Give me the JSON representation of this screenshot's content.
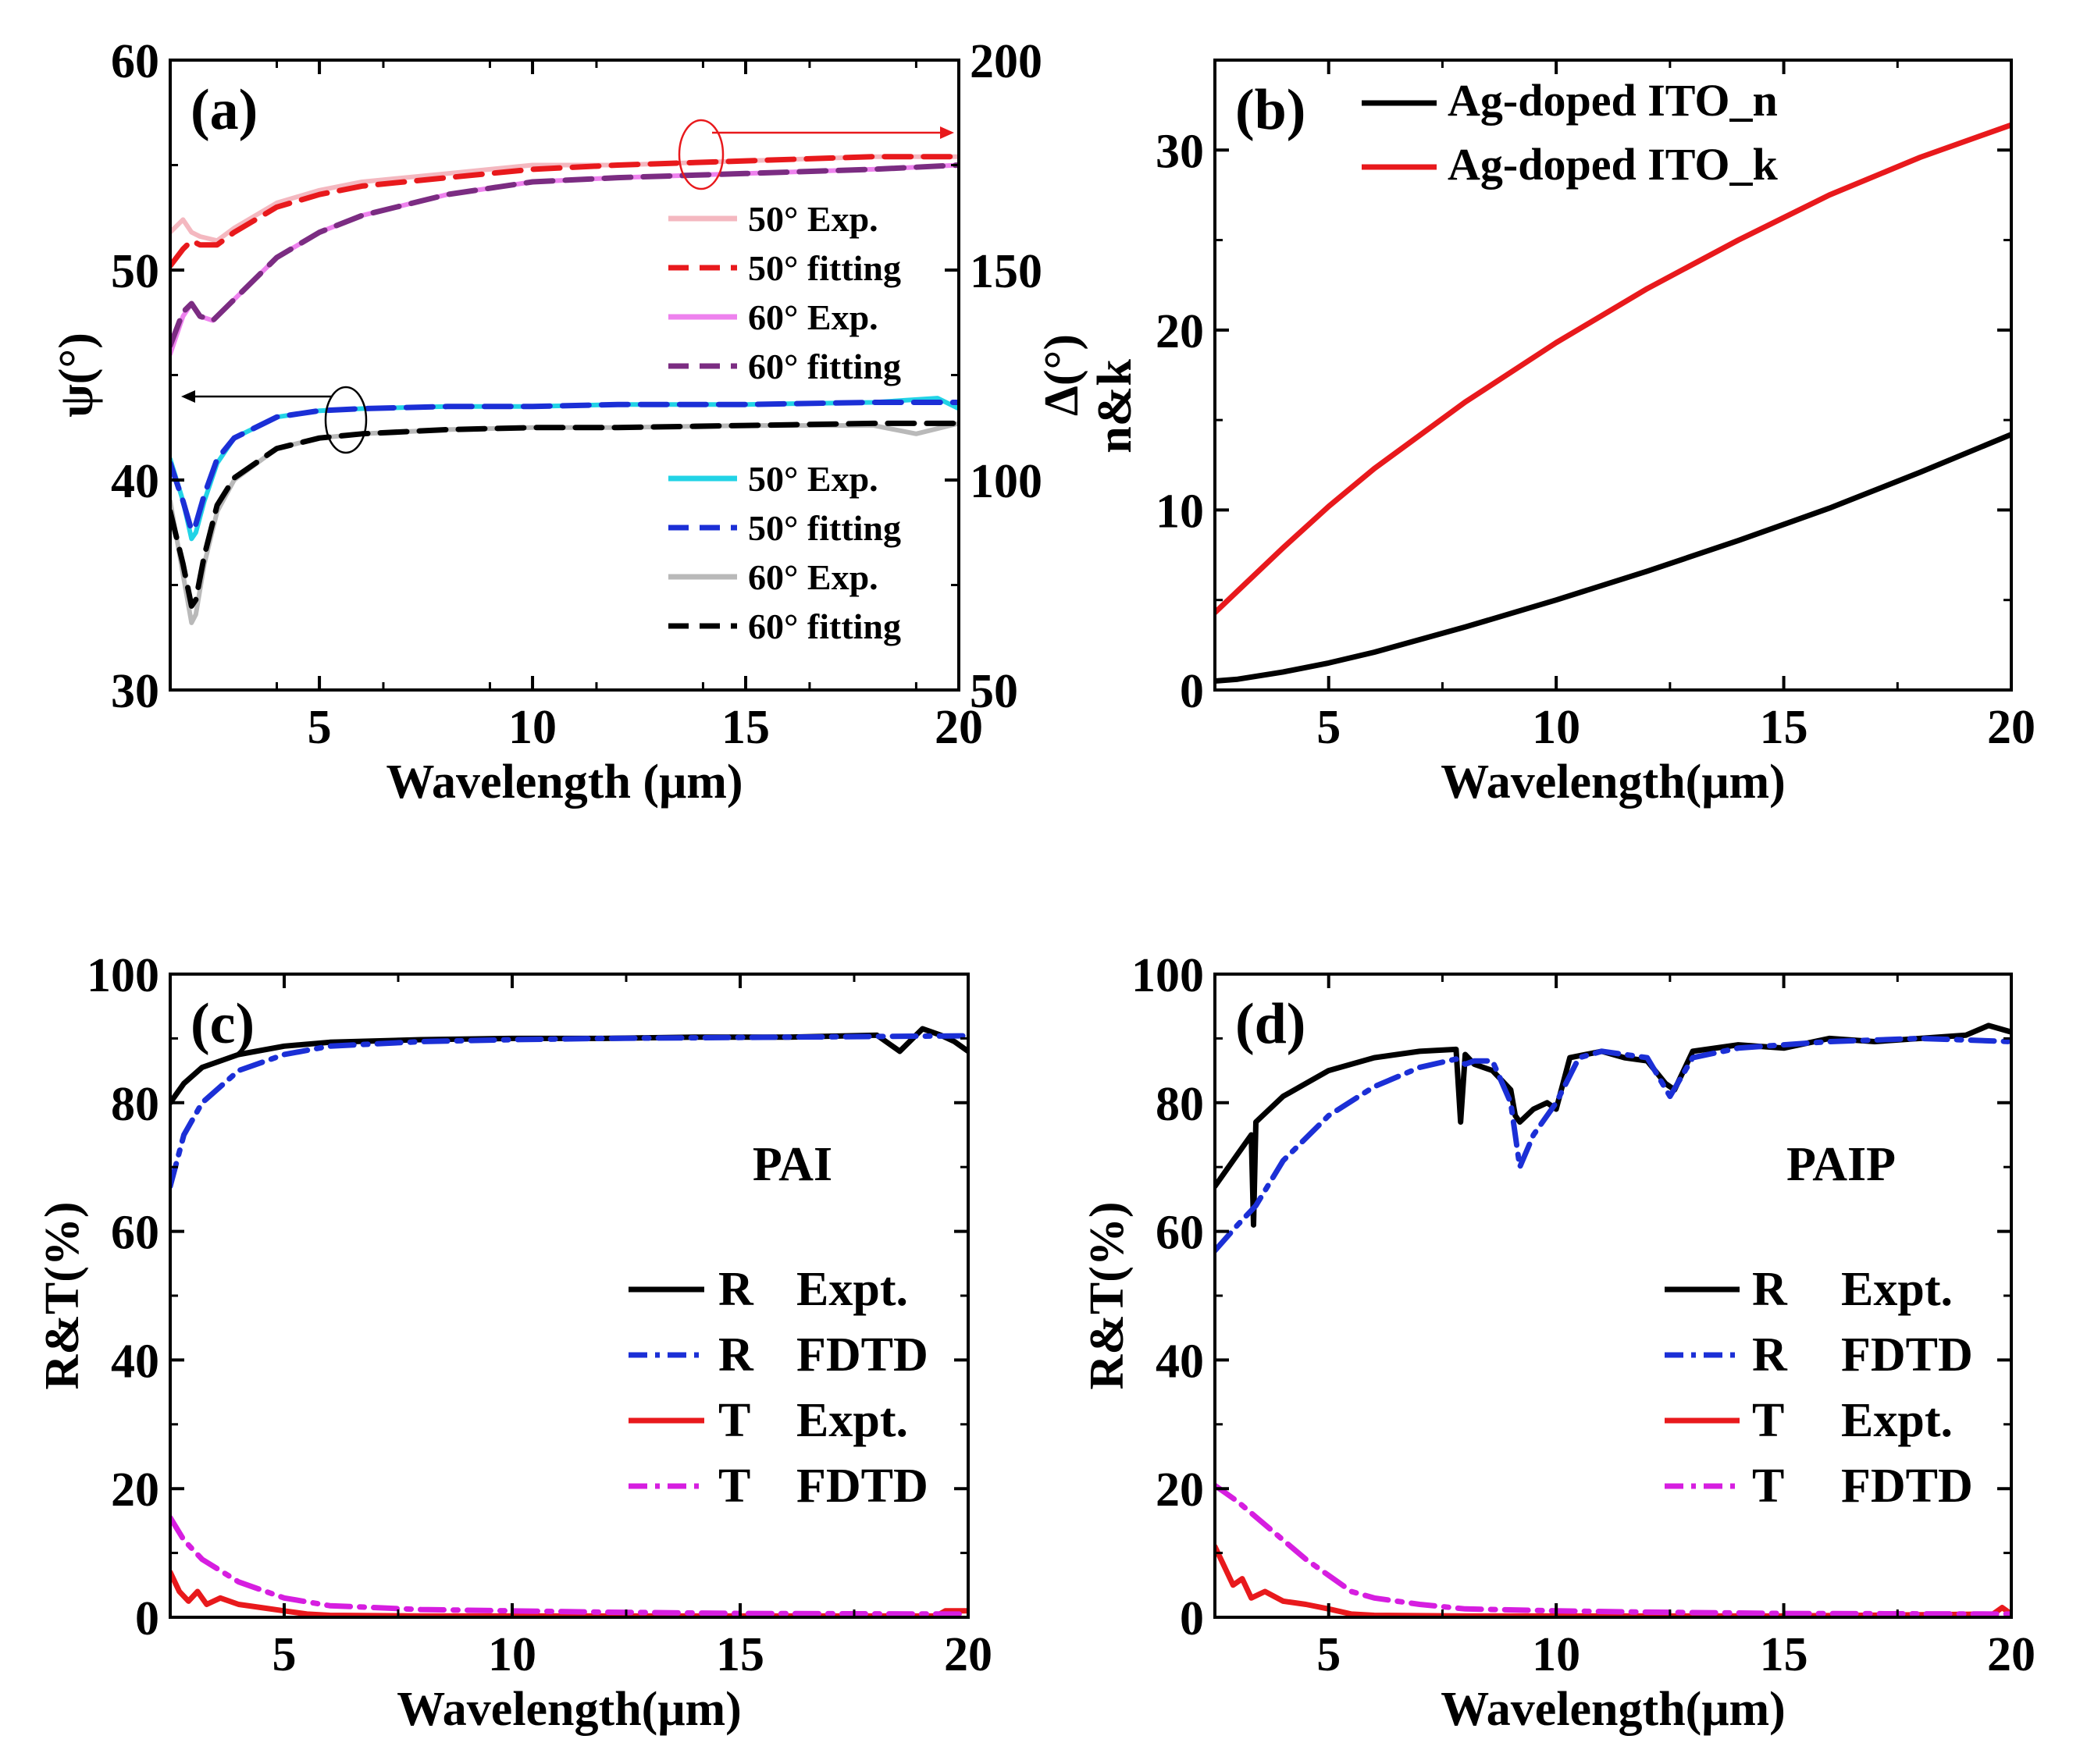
{
  "chart_data": [
    {
      "panel": "(a)",
      "type": "line",
      "xlabel": "Wavelength (μm)",
      "ylabel": "ψ(°)",
      "ylabel_right": "Δ(°)",
      "xlim": [
        1.5,
        20
      ],
      "ylim": [
        30,
        60
      ],
      "ylim_right": [
        50,
        200
      ],
      "x_ticks": [
        "5",
        "10",
        "15",
        "20"
      ],
      "y_ticks": [
        "30",
        "40",
        "50",
        "60"
      ],
      "y_ticks_right": [
        "50",
        "100",
        "150",
        "200"
      ],
      "series": [
        {
          "name": "50° Exp.",
          "axis": "right",
          "color": "#f4b8c0",
          "dash": "solid",
          "x": [
            1.5,
            1.8,
            2.0,
            2.2,
            2.6,
            3,
            4,
            5,
            6,
            8,
            10,
            12,
            15,
            18,
            20
          ],
          "y": [
            159,
            162,
            159,
            158,
            157,
            160,
            166,
            169,
            171,
            173,
            175,
            175,
            176,
            177,
            177
          ]
        },
        {
          "name": "50° fitting",
          "axis": "right",
          "color": "#e8191c",
          "dash": "dash",
          "x": [
            1.5,
            1.8,
            2.0,
            2.2,
            2.6,
            3,
            4,
            5,
            6,
            8,
            10,
            12,
            15,
            18,
            20
          ],
          "y": [
            151,
            155,
            157,
            156,
            156,
            159,
            165,
            168,
            170,
            172,
            174,
            175,
            176,
            177,
            177
          ]
        },
        {
          "name": "60° Exp.",
          "axis": "right",
          "color": "#ee82ee",
          "dash": "solid",
          "x": [
            1.5,
            1.8,
            2.0,
            2.2,
            2.5,
            3,
            4,
            5,
            6,
            8,
            10,
            12,
            15,
            18,
            20
          ],
          "y": [
            130,
            139,
            142,
            139,
            138,
            143,
            153,
            159,
            163,
            168,
            171,
            172,
            173,
            174,
            175
          ]
        },
        {
          "name": "60° fitting",
          "axis": "right",
          "color": "#7b2c82",
          "dash": "dash",
          "x": [
            1.5,
            1.8,
            2.0,
            2.2,
            2.5,
            3,
            4,
            5,
            6,
            8,
            10,
            12,
            15,
            18,
            20
          ],
          "y": [
            132,
            140,
            142,
            139,
            138,
            143,
            153,
            159,
            163,
            168,
            171,
            172,
            173,
            174,
            175
          ]
        },
        {
          "name": "50° Exp.",
          "axis": "left",
          "color": "#22d3e6",
          "dash": "solid",
          "x": [
            1.5,
            1.8,
            2.0,
            2.1,
            2.3,
            2.6,
            3,
            4,
            5,
            6,
            8,
            10,
            12,
            15,
            18,
            19.5,
            20
          ],
          "y": [
            41,
            39,
            37.2,
            37.5,
            39,
            40.8,
            42,
            43,
            43.3,
            43.4,
            43.5,
            43.5,
            43.6,
            43.6,
            43.7,
            43.9,
            43.4
          ]
        },
        {
          "name": "50° fitting",
          "axis": "left",
          "color": "#1b2fd6",
          "dash": "dash",
          "x": [
            1.5,
            1.8,
            2.0,
            2.1,
            2.3,
            2.6,
            3,
            4,
            5,
            6,
            8,
            10,
            12,
            15,
            18,
            20
          ],
          "y": [
            40.8,
            39,
            37.6,
            37.9,
            39.3,
            41,
            42,
            43,
            43.3,
            43.4,
            43.5,
            43.5,
            43.6,
            43.6,
            43.7,
            43.7
          ]
        },
        {
          "name": "60° Exp.",
          "axis": "left",
          "color": "#b9b9b9",
          "dash": "solid",
          "x": [
            1.5,
            1.8,
            2.0,
            2.1,
            2.3,
            2.6,
            3,
            4,
            5,
            6,
            8,
            10,
            12,
            15,
            18,
            19,
            20
          ],
          "y": [
            39,
            35.5,
            33.2,
            33.6,
            36,
            38.5,
            40,
            41.5,
            42,
            42.2,
            42.4,
            42.5,
            42.5,
            42.6,
            42.6,
            42.2,
            42.7
          ]
        },
        {
          "name": "60° fitting",
          "axis": "left",
          "color": "#000000",
          "dash": "dash",
          "x": [
            1.5,
            1.8,
            2.0,
            2.1,
            2.3,
            2.6,
            3,
            4,
            5,
            6,
            8,
            10,
            12,
            15,
            18,
            20
          ],
          "y": [
            38.5,
            36,
            34,
            34.3,
            36.4,
            38.8,
            40.1,
            41.5,
            42,
            42.2,
            42.4,
            42.5,
            42.5,
            42.6,
            42.7,
            42.7
          ]
        }
      ]
    },
    {
      "panel": "(b)",
      "type": "line",
      "xlabel": "Wavelength(μm)",
      "ylabel": "n&k",
      "xlim": [
        2.5,
        20
      ],
      "ylim": [
        0,
        35
      ],
      "x_ticks": [
        "5",
        "10",
        "15",
        "20"
      ],
      "y_ticks": [
        "0",
        "10",
        "20",
        "30"
      ],
      "series": [
        {
          "name": "Ag-doped ITO_n",
          "color": "#000000",
          "dash": "solid",
          "x": [
            2.5,
            3,
            4,
            5,
            6,
            8,
            10,
            12,
            14,
            16,
            18,
            20
          ],
          "y": [
            0.5,
            0.6,
            1.0,
            1.5,
            2.1,
            3.5,
            5.0,
            6.6,
            8.3,
            10.1,
            12.1,
            14.2
          ]
        },
        {
          "name": "Ag-doped ITO_k",
          "color": "#e8191c",
          "dash": "solid",
          "x": [
            2.5,
            3,
            4,
            5,
            6,
            8,
            10,
            12,
            14,
            16,
            18,
            20
          ],
          "y": [
            4.3,
            5.5,
            7.9,
            10.2,
            12.3,
            16.0,
            19.3,
            22.3,
            25.0,
            27.5,
            29.6,
            31.4
          ]
        }
      ]
    },
    {
      "panel": "(c)",
      "type": "line",
      "annotation": "PAI",
      "xlabel": "Wavelength(μm)",
      "ylabel": "R&T(%)",
      "xlim": [
        2.5,
        20
      ],
      "ylim": [
        0,
        100
      ],
      "x_ticks": [
        "5",
        "10",
        "15",
        "20"
      ],
      "y_ticks": [
        "0",
        "20",
        "40",
        "60",
        "80",
        "100"
      ],
      "series": [
        {
          "name": "R Expt.",
          "label_a": "R",
          "label_b": "Expt.",
          "color": "#000000",
          "dash": "solid",
          "x": [
            2.5,
            2.8,
            3.2,
            4,
            5,
            6,
            8,
            10,
            12,
            14,
            16,
            18,
            18.5,
            19,
            19.4,
            19.7,
            20
          ],
          "y": [
            80,
            83,
            85.5,
            87.5,
            88.8,
            89.4,
            89.8,
            90,
            90,
            90.2,
            90.2,
            90.5,
            88,
            91.5,
            90.5,
            89.5,
            88
          ]
        },
        {
          "name": "R FDTD",
          "label_a": "R",
          "label_b": "FDTD",
          "color": "#1b2fd6",
          "dash": "dashdot",
          "x": [
            2.5,
            2.8,
            3.2,
            4,
            5,
            6,
            8,
            10,
            12,
            14,
            16,
            18,
            20
          ],
          "y": [
            67,
            75,
            80,
            85,
            87.5,
            88.8,
            89.5,
            89.8,
            90,
            90.1,
            90.2,
            90.3,
            90.4
          ]
        },
        {
          "name": "T Expt.",
          "label_a": "T",
          "label_b": "Expt.",
          "color": "#e8191c",
          "dash": "solid",
          "x": [
            2.5,
            2.7,
            2.9,
            3.1,
            3.3,
            3.6,
            4,
            4.5,
            5,
            5.5,
            6,
            8,
            10,
            15,
            19.3,
            19.5,
            20
          ],
          "y": [
            7,
            4,
            2.5,
            4,
            2,
            3,
            2,
            1.5,
            1,
            0.5,
            0.3,
            0.2,
            0.2,
            0.2,
            0.2,
            1,
            1
          ]
        },
        {
          "name": "T FDTD",
          "label_a": "T",
          "label_b": "FDTD",
          "color": "#d61ee0",
          "dash": "dashdot",
          "x": [
            2.5,
            2.8,
            3.2,
            4,
            5,
            6,
            8,
            10,
            12,
            15,
            20
          ],
          "y": [
            15.5,
            12,
            9,
            5.5,
            3,
            1.8,
            1.2,
            1,
            0.8,
            0.6,
            0.5
          ]
        }
      ]
    },
    {
      "panel": "(d)",
      "type": "line",
      "annotation": "PAIP",
      "xlabel": "Wavelength(μm)",
      "ylabel": "R&T(%)",
      "xlim": [
        2.5,
        20
      ],
      "ylim": [
        0,
        100
      ],
      "x_ticks": [
        "5",
        "10",
        "15",
        "20"
      ],
      "y_ticks": [
        "0",
        "20",
        "40",
        "60",
        "80",
        "100"
      ],
      "series": [
        {
          "name": "R Expt.",
          "label_a": "R",
          "label_b": "Expt.",
          "color": "#000000",
          "dash": "solid",
          "x": [
            2.5,
            3,
            3.3,
            3.35,
            3.4,
            4,
            5,
            6,
            7,
            7.8,
            7.9,
            8.0,
            8.2,
            8.6,
            9.0,
            9.1,
            9.2,
            9.5,
            9.8,
            10,
            10.3,
            11,
            11.5,
            12,
            12.4,
            12.6,
            13,
            14,
            15,
            16,
            17,
            18,
            19,
            19.5,
            20
          ],
          "y": [
            67,
            72,
            75,
            61,
            77,
            81,
            85,
            87,
            88,
            88.3,
            77,
            87.5,
            86,
            85,
            82,
            78,
            77,
            79,
            80,
            79,
            87,
            88,
            87,
            86.5,
            83,
            82,
            88,
            89,
            88.5,
            90,
            89.5,
            90,
            90.5,
            92,
            91
          ]
        },
        {
          "name": "R FDTD",
          "label_a": "R",
          "label_b": "FDTD",
          "color": "#1b2fd6",
          "dash": "dashdot",
          "x": [
            2.5,
            3,
            3.4,
            4,
            5,
            6,
            7,
            7.8,
            8.0,
            8.2,
            8.6,
            9.0,
            9.2,
            9.5,
            10,
            10.5,
            11,
            12,
            12.5,
            13,
            14,
            15,
            16,
            18,
            20
          ],
          "y": [
            57,
            61,
            64,
            71,
            78,
            82.5,
            85.5,
            86.8,
            86,
            86.5,
            86.5,
            80,
            70,
            75,
            80,
            87,
            88,
            87,
            81,
            87,
            88.5,
            89,
            89.5,
            90,
            89.5
          ]
        },
        {
          "name": "T Expt.",
          "label_a": "T",
          "label_b": "Expt.",
          "color": "#e8191c",
          "dash": "solid",
          "x": [
            2.5,
            2.7,
            2.9,
            3.1,
            3.3,
            3.6,
            4,
            4.5,
            5,
            5.5,
            6,
            8,
            10,
            15,
            19.6,
            19.8,
            20
          ],
          "y": [
            11,
            8,
            5,
            6,
            3,
            4,
            2.5,
            2,
            1.3,
            0.5,
            0.3,
            0.2,
            0.2,
            0.2,
            0.5,
            1.5,
            0.5
          ]
        },
        {
          "name": "T FDTD",
          "label_a": "T",
          "label_b": "FDTD",
          "color": "#d61ee0",
          "dash": "dashdot",
          "x": [
            2.5,
            3,
            3.5,
            4,
            4.5,
            5,
            5.5,
            6,
            7,
            8,
            10,
            12,
            15,
            20
          ],
          "y": [
            20.5,
            18,
            15,
            12,
            9,
            6.5,
            4,
            3,
            2,
            1.3,
            1,
            0.8,
            0.6,
            0.5
          ]
        }
      ]
    }
  ]
}
